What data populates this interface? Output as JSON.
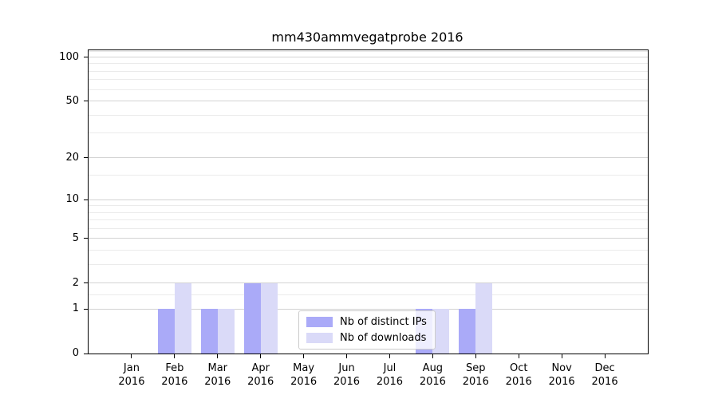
{
  "title": "mm430ammvegatprobe 2016",
  "chart_data": {
    "type": "bar",
    "title": "mm430ammvegatprobe 2016",
    "scale": "log10(1+x)",
    "categories": [
      "Jan",
      "Feb",
      "Mar",
      "Apr",
      "May",
      "Jun",
      "Jul",
      "Aug",
      "Sep",
      "Oct",
      "Nov",
      "Dec"
    ],
    "year": "2016",
    "series": [
      {
        "name": "Nb of distinct IPs",
        "color": "#aaaaf8",
        "values": [
          0,
          1,
          1,
          2,
          0,
          0,
          0,
          1,
          1,
          0,
          0,
          0
        ]
      },
      {
        "name": "Nb of downloads",
        "color": "#dadaf8",
        "values": [
          0,
          2,
          1,
          2,
          0,
          0,
          0,
          1,
          2,
          0,
          0,
          0
        ]
      }
    ],
    "y_ticks": [
      0,
      1,
      2,
      5,
      10,
      20,
      50,
      100
    ],
    "y_minor_gridlines": [
      1.5,
      3,
      4,
      6,
      7,
      8,
      9,
      15,
      30,
      40,
      60,
      70,
      80,
      90,
      110
    ],
    "ylim": [
      0,
      112
    ],
    "xlabel": "",
    "ylabel": "",
    "grid": true,
    "legend_position": "lower center"
  },
  "colors": {
    "grid_major": "#d3d3d3",
    "grid_minor": "#ebebeb",
    "axis": "#000000",
    "legend_border": "#cccccc"
  }
}
